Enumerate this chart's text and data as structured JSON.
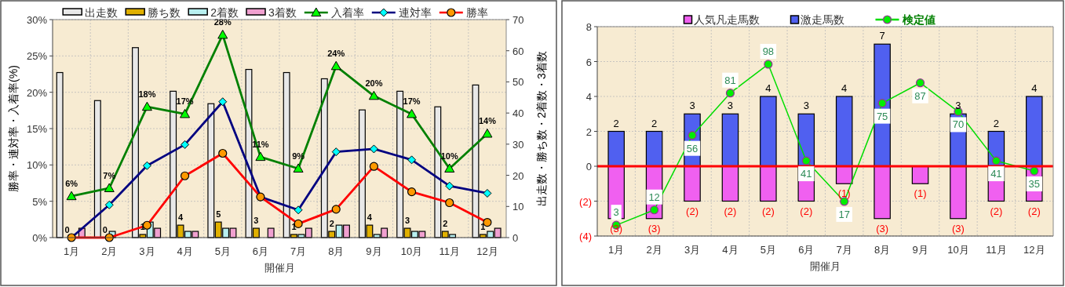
{
  "chart_data": [
    {
      "type": "bar",
      "xlabel": "開催月",
      "ylabel": "勝率・連対率・入着率(%)",
      "y2label": "出走数・勝ち数・2着数・3着数",
      "categories": [
        "1月",
        "2月",
        "3月",
        "4月",
        "5月",
        "6月",
        "7月",
        "8月",
        "9月",
        "10月",
        "11月",
        "12月"
      ],
      "ylim": [
        0,
        30
      ],
      "yticks": [
        {
          "value": 0,
          "label": "0%"
        },
        {
          "value": 5,
          "label": "5%"
        },
        {
          "value": 10,
          "label": "10%"
        },
        {
          "value": 15,
          "label": "15%"
        },
        {
          "value": 20,
          "label": "20%"
        },
        {
          "value": 25,
          "label": "25%"
        },
        {
          "value": 30,
          "label": "30%"
        }
      ],
      "y2lim": [
        0,
        70
      ],
      "y2ticks": [
        0,
        10,
        20,
        30,
        40,
        50,
        60,
        70
      ],
      "grid": true,
      "legend": "top",
      "series": [
        {
          "name": "出走数",
          "axis": "y2",
          "color": "#e8e8e8",
          "values": [
            53,
            44,
            61,
            47,
            43,
            54,
            53,
            51,
            41,
            47,
            42,
            49
          ]
        },
        {
          "name": "勝ち数",
          "axis": "y2",
          "color": "#e0b000",
          "values": [
            0,
            0,
            1,
            4,
            5,
            3,
            1,
            2,
            4,
            3,
            2,
            1
          ],
          "value_labels": [
            "0",
            "0",
            "1",
            "4",
            "5",
            "3",
            "1",
            "2",
            "4",
            "3",
            "2",
            "1"
          ]
        },
        {
          "name": "2着数",
          "axis": "y2",
          "color": "#b8f0f0",
          "values": [
            0,
            2,
            5,
            2,
            3,
            0,
            1,
            4,
            1,
            2,
            1,
            2
          ]
        },
        {
          "name": "3着数",
          "axis": "y2",
          "color": "#f0a0d0",
          "values": [
            3,
            null,
            3,
            2,
            3,
            3,
            3,
            4,
            3,
            2,
            0,
            3
          ]
        },
        {
          "name": "入着率",
          "type": "line",
          "color": "#008000",
          "marker": "triangle",
          "colors": [
            "#00ff00",
            "#00ff00",
            "#00ff00",
            "#00ff00",
            "#00ff00",
            "#00ff00",
            "#00ff00",
            "#00ff00",
            "#00ff00",
            "#00ff00",
            "#00ff00",
            "#00ff00"
          ],
          "values": [
            5.7,
            6.8,
            18.0,
            17.0,
            27.9,
            11.1,
            9.5,
            23.6,
            19.5,
            17.0,
            9.5,
            14.3
          ],
          "value_labels": [
            "6%",
            "7%",
            "18%",
            "17%",
            "28%",
            "11%",
            "9%",
            "24%",
            "20%",
            "17%",
            "10%",
            "14%"
          ]
        },
        {
          "name": "連対率",
          "type": "line",
          "color": "#000080",
          "marker": "diamond",
          "colors": [
            "#00ffff",
            "#00ffff",
            "#00ffff",
            "#00ffff",
            "#00ffff",
            "#00ffff",
            "#00ffff",
            "#00ffff",
            "#00ffff",
            "#00ffff",
            "#00ffff",
            "#00ffff"
          ],
          "values": [
            0,
            4.5,
            9.9,
            12.8,
            18.7,
            5.6,
            3.8,
            11.8,
            12.2,
            10.7,
            7.1,
            6.1
          ]
        },
        {
          "name": "勝率",
          "type": "line",
          "color": "#ff0000",
          "marker": "circle",
          "colors": [
            "#ff9900",
            "#ff9900",
            "#ff9900",
            "#ff9900",
            "#ff9900",
            "#ff9900",
            "#ff9900",
            "#ff9900",
            "#ff9900",
            "#ff9900",
            "#ff9900",
            "#ff9900"
          ],
          "values": [
            0,
            0,
            1.7,
            8.5,
            11.6,
            5.6,
            1.9,
            3.9,
            9.8,
            6.3,
            4.8,
            2.1
          ]
        }
      ]
    },
    {
      "type": "bar",
      "stacked": true,
      "xlabel": "開催月",
      "categories": [
        "1月",
        "2月",
        "3月",
        "4月",
        "5月",
        "6月",
        "7月",
        "8月",
        "9月",
        "10月",
        "11月",
        "12月"
      ],
      "ylim": [
        -4,
        8
      ],
      "yticks": [
        {
          "value": -4,
          "label": "(4)"
        },
        {
          "value": -2,
          "label": "(2)"
        },
        0,
        2,
        4,
        6,
        8
      ],
      "y2lim": [
        -3.4,
        120.2
      ],
      "grid": true,
      "legend": "top",
      "ref_lines": [
        {
          "axis": "y",
          "value": 0,
          "color": "#ff0000"
        }
      ],
      "series": [
        {
          "name": "人気凡走馬数",
          "color": "#f060f0",
          "values": [
            -3,
            -3,
            -2,
            -2,
            -2,
            -2,
            -1,
            -3,
            -1,
            -3,
            -2,
            -2
          ],
          "value_labels": [
            "(3)",
            "(3)",
            "(2)",
            "(2)",
            "(2)",
            "(2)",
            "(1)",
            "(3)",
            "(1)",
            "(3)",
            "(2)",
            "(2)"
          ]
        },
        {
          "name": "激走馬数",
          "color": "#5060f0",
          "values": [
            2,
            2,
            3,
            3,
            4,
            3,
            4,
            7,
            0,
            3,
            2,
            4
          ],
          "value_labels": [
            "2",
            "2",
            "3",
            "3",
            "4",
            "3",
            "4",
            "7",
            null,
            "3",
            "2",
            "4"
          ]
        },
        {
          "name": "検定値",
          "type": "line",
          "axis": "y2",
          "color": "#00dd00",
          "marker": "circle",
          "colors": [
            "#00ee00",
            "#00ee00",
            "#00ee00",
            "#00ee00",
            "#00ee00",
            "#00ee00",
            "#00ee00",
            "#00ee00",
            "#00ee00",
            "#00ee00",
            "#00ee00",
            "#00ee00"
          ],
          "values": [
            3,
            12,
            56,
            81,
            98,
            41,
            17,
            75,
            87,
            70,
            41,
            35
          ],
          "value_labels": [
            "3",
            "12",
            "56",
            "81",
            "98",
            "41",
            "17",
            "75",
            "87",
            "70",
            "41",
            "35"
          ]
        }
      ]
    }
  ]
}
